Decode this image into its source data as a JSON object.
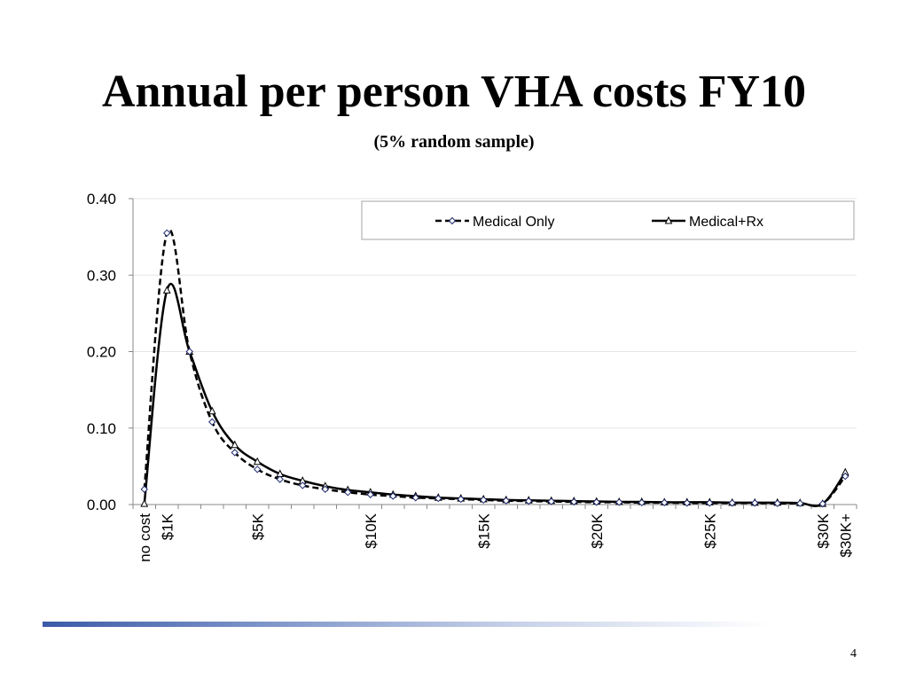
{
  "slide": {
    "title": "Annual per person VHA costs FY10",
    "subtitle": "(5% random sample)",
    "page_number": "4"
  },
  "colors": {
    "line": "#000000",
    "marker_fill": "#ffffff",
    "diamond_marker_stroke": "#1f2a6b",
    "footer_accent": "#3b5aa8"
  },
  "chart_data": {
    "type": "line",
    "title": "",
    "xlabel": "",
    "ylabel": "",
    "ylim": [
      0,
      0.4
    ],
    "yticks": [
      "0.00",
      "0.10",
      "0.20",
      "0.30",
      "0.40"
    ],
    "grid": true,
    "legend": "top-right",
    "x_tick_labels": [
      {
        "index": 0,
        "label": "no cost"
      },
      {
        "index": 1,
        "label": "$1K"
      },
      {
        "index": 5,
        "label": "$5K"
      },
      {
        "index": 10,
        "label": "$10K"
      },
      {
        "index": 15,
        "label": "$15K"
      },
      {
        "index": 20,
        "label": "$20K"
      },
      {
        "index": 25,
        "label": "$25K"
      },
      {
        "index": 30,
        "label": "$30K"
      },
      {
        "index": 31,
        "label": "$30K+"
      }
    ],
    "series": [
      {
        "name": "Medical Only",
        "line_style": "dashed",
        "marker": "diamond",
        "values": [
          0.02,
          0.355,
          0.2,
          0.108,
          0.068,
          0.046,
          0.033,
          0.025,
          0.02,
          0.016,
          0.013,
          0.011,
          0.009,
          0.008,
          0.007,
          0.006,
          0.005,
          0.0045,
          0.004,
          0.0035,
          0.003,
          0.003,
          0.0025,
          0.0025,
          0.002,
          0.002,
          0.002,
          0.002,
          0.0015,
          0.0015,
          0.001,
          0.037
        ]
      },
      {
        "name": "Medical+Rx",
        "line_style": "solid",
        "marker": "triangle",
        "values": [
          0.001,
          0.28,
          0.2,
          0.122,
          0.078,
          0.056,
          0.04,
          0.031,
          0.024,
          0.019,
          0.016,
          0.013,
          0.011,
          0.009,
          0.008,
          0.007,
          0.006,
          0.0055,
          0.005,
          0.0045,
          0.004,
          0.0035,
          0.0035,
          0.003,
          0.003,
          0.003,
          0.0025,
          0.0025,
          0.0025,
          0.002,
          0.001,
          0.042
        ]
      }
    ]
  }
}
